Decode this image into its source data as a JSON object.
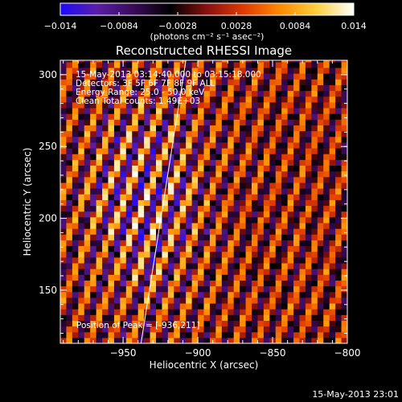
{
  "chart_data": {
    "type": "heatmap",
    "title": "Reconstructed RHESSI Image",
    "xlabel": "Heliocentric X (arcsec)",
    "ylabel": "Heliocentric Y (arcsec)",
    "xlim": [
      -992,
      -800
    ],
    "ylim": [
      113,
      310
    ],
    "x_ticks": [
      -950,
      -900,
      -850,
      -800
    ],
    "y_ticks": [
      150,
      200,
      250,
      300
    ],
    "colorbar": {
      "vmin": -0.014,
      "vmax": 0.014,
      "ticks": [
        "-0.014",
        "-0.0084",
        "-0.0028",
        "0.0028",
        "0.0084",
        "0.014"
      ],
      "unit_label": "(photons cm⁻² s⁻¹ asec⁻²)",
      "colors": [
        "#1c0afc",
        "#5a1ea8",
        "#3a0a5a",
        "#000000",
        "#8a1010",
        "#e03a00",
        "#ff8a00",
        "#ffd040",
        "#ffffff"
      ]
    },
    "annotations": {
      "time_range": "15-May-2013 03:14:40.000 to 03:15:18.000",
      "detectors": "Detectors: 3F 5F 6F 7F 8F 9F ALL",
      "energy_range": "Energy Range: 25.0 - 50.0 keV",
      "clean": "Clean    Total counts: 1.49E+03",
      "peak": "Position of Peak = [-936,211]"
    },
    "peak_position": [
      -936,
      211
    ],
    "limb_line": {
      "x": [
        -938,
        -908
      ],
      "y": [
        113,
        310
      ]
    },
    "stripe_pattern": {
      "spacing_arcsec": 14,
      "slope": 2.6,
      "peak_x": -936,
      "peak_y": 211
    },
    "pixel_size_arcsec": 4
  },
  "footer": {
    "date_stamp": "15-May-2013 23:01"
  }
}
